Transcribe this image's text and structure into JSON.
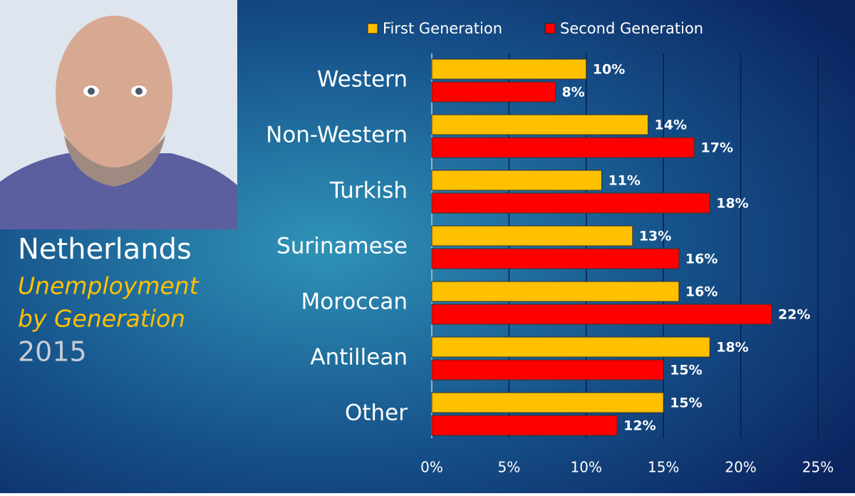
{
  "chart_data": {
    "type": "bar",
    "orientation": "horizontal",
    "title": "Netherlands",
    "subtitle_lines": [
      "Unemployment",
      "by Generation"
    ],
    "year": "2015",
    "categories": [
      "Western",
      "Non-Western",
      "Turkish",
      "Surinamese",
      "Moroccan",
      "Antillean",
      "Other"
    ],
    "series": [
      {
        "name": "First Generation",
        "color": "#ffc000",
        "values": [
          10,
          14,
          11,
          13,
          16,
          18,
          15
        ],
        "value_labels": [
          "10%",
          "14%",
          "11%",
          "13%",
          "16%",
          "18%",
          "15%"
        ]
      },
      {
        "name": "Second Generation",
        "color": "#ff0000",
        "values": [
          8,
          17,
          18,
          16,
          22,
          15,
          12
        ],
        "value_labels": [
          "8%",
          "17%",
          "18%",
          "16%",
          "22%",
          "15%",
          "12%"
        ]
      }
    ],
    "xlim": [
      0,
      25
    ],
    "xticks": [
      {
        "value": 0,
        "label": "0%"
      },
      {
        "value": 5,
        "label": "5%"
      },
      {
        "value": 10,
        "label": "10%"
      },
      {
        "value": 15,
        "label": "15%"
      },
      {
        "value": 20,
        "label": "20%"
      },
      {
        "value": 25,
        "label": "25%"
      }
    ],
    "grid": true,
    "legend": "top"
  }
}
